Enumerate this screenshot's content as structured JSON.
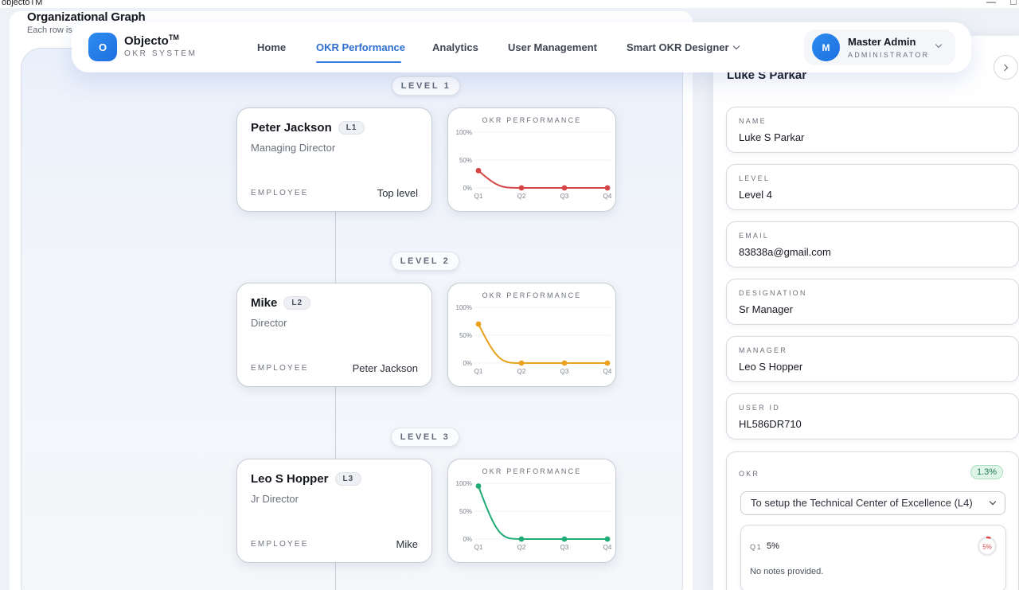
{
  "window": {
    "title": "objectoTM",
    "controls": [
      "—",
      "□"
    ]
  },
  "page": {
    "title": "Organizational Graph",
    "subtitle": "Each row is"
  },
  "brand": {
    "logo_letter": "O",
    "name": "Objecto",
    "tm": "TM",
    "subtitle": "OKR SYSTEM",
    "accent": "#2d7fe8"
  },
  "nav": {
    "items": [
      {
        "label": "Home",
        "active": false
      },
      {
        "label": "OKR Performance",
        "active": true
      },
      {
        "label": "Analytics",
        "active": false
      },
      {
        "label": "User Management",
        "active": false
      },
      {
        "label": "Smart OKR Designer",
        "active": false,
        "dropdown": true
      }
    ]
  },
  "user": {
    "avatar_letter": "M",
    "name": "Master Admin",
    "role": "ADMINISTRATOR"
  },
  "graph": {
    "employee_label": "EMPLOYEE",
    "chart_title": "OKR PERFORMANCE",
    "levels": [
      {
        "level_label": "LEVEL 1",
        "name": "Peter Jackson",
        "badge": "L1",
        "role": "Managing Director",
        "reports_to": "Top level",
        "color": "#d64545"
      },
      {
        "level_label": "LEVEL 2",
        "name": "Mike",
        "badge": "L2",
        "role": "Director",
        "reports_to": "Peter Jackson",
        "color": "#eaa11e"
      },
      {
        "level_label": "LEVEL 3",
        "name": "Leo S Hopper",
        "badge": "L3",
        "role": "Jr Director",
        "reports_to": "Mike",
        "color": "#1fab74"
      }
    ]
  },
  "chart_data": [
    {
      "type": "line",
      "title": "OKR PERFORMANCE",
      "categories": [
        "Q1",
        "Q2",
        "Q3",
        "Q4"
      ],
      "yticks": [
        "100%",
        "50%",
        "0%"
      ],
      "ylim": [
        0,
        100
      ],
      "series": [
        {
          "values": [
            31,
            0,
            0,
            0
          ]
        }
      ],
      "color": "#d64545"
    },
    {
      "type": "line",
      "title": "OKR PERFORMANCE",
      "categories": [
        "Q1",
        "Q2",
        "Q3",
        "Q4"
      ],
      "yticks": [
        "100%",
        "50%",
        "0%"
      ],
      "ylim": [
        0,
        100
      ],
      "series": [
        {
          "values": [
            70,
            0,
            0,
            0
          ]
        }
      ],
      "color": "#eaa11e"
    },
    {
      "type": "line",
      "title": "OKR PERFORMANCE",
      "categories": [
        "Q1",
        "Q2",
        "Q3",
        "Q4"
      ],
      "yticks": [
        "100%",
        "50%",
        "0%"
      ],
      "ylim": [
        0,
        100
      ],
      "series": [
        {
          "values": [
            95,
            0,
            0,
            0
          ]
        }
      ],
      "color": "#1fab74"
    }
  ],
  "detail": {
    "heading": "Luke S Parkar",
    "fields": [
      {
        "label": "NAME",
        "value": "Luke S Parkar"
      },
      {
        "label": "LEVEL",
        "value": "Level 4"
      },
      {
        "label": "EMAIL",
        "value": "83838a@gmail.com"
      },
      {
        "label": "DESIGNATION",
        "value": "Sr Manager"
      },
      {
        "label": "MANAGER",
        "value": "Leo S Hopper"
      },
      {
        "label": "USER ID",
        "value": "HL586DR710"
      }
    ],
    "okr": {
      "label": "OKR",
      "percent": "1.3%",
      "selected": "To setup the Technical Center of Excellence (L4)",
      "quarter": {
        "label": "Q1",
        "value": "5%",
        "ring_text": "5%",
        "progress": 0.05,
        "notes": "No notes provided."
      }
    }
  }
}
